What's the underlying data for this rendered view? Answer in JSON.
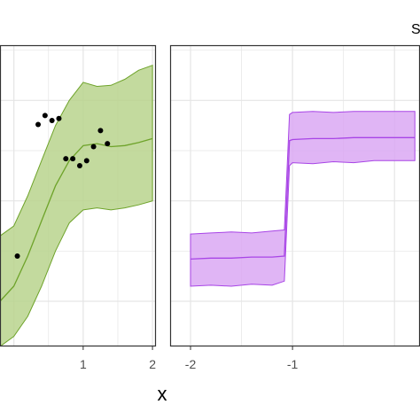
{
  "figure": {
    "xlabel": "x",
    "corner_text": "S"
  },
  "colors": {
    "left_band": "#b9d38d",
    "left_line": "#6ea32a",
    "right_band": "#dba8f3",
    "right_line": "#a845e6",
    "points": "#000000",
    "grid": "#e5e5e5",
    "frame": "#333333"
  },
  "chart_data": [
    {
      "type": "line",
      "panel": "left",
      "xlim": [
        -0.2,
        2.05
      ],
      "ylim": [
        -1.45,
        1.55
      ],
      "x_ticks": [
        1,
        2
      ],
      "x_tick_labels": [
        "1",
        "2"
      ],
      "grid": true,
      "band_x": [
        -0.2,
        0.0,
        0.2,
        0.4,
        0.6,
        0.8,
        1.0,
        1.2,
        1.4,
        1.6,
        1.8,
        2.0
      ],
      "series": [
        {
          "role": "mean",
          "x": [
            -0.2,
            0.0,
            0.2,
            0.4,
            0.6,
            0.8,
            1.0,
            1.2,
            1.4,
            1.6,
            1.8,
            2.0
          ],
          "y": [
            -1.0,
            -0.85,
            -0.55,
            -0.2,
            0.15,
            0.4,
            0.55,
            0.57,
            0.54,
            0.55,
            0.58,
            0.62
          ]
        }
      ],
      "band_lower": [
        -1.45,
        -1.35,
        -1.15,
        -0.85,
        -0.5,
        -0.22,
        -0.09,
        -0.07,
        -0.09,
        -0.07,
        -0.04,
        0.0
      ],
      "band_upper": [
        -0.35,
        -0.25,
        0.05,
        0.4,
        0.75,
        1.0,
        1.18,
        1.14,
        1.15,
        1.21,
        1.3,
        1.35
      ],
      "points": {
        "x": [
          0.05,
          0.35,
          0.45,
          0.55,
          0.65,
          0.75,
          0.85,
          0.95,
          1.05,
          1.15,
          1.25,
          1.35
        ],
        "y": [
          -0.55,
          0.76,
          0.85,
          0.8,
          0.82,
          0.42,
          0.42,
          0.35,
          0.4,
          0.54,
          0.7,
          0.57
        ]
      }
    },
    {
      "type": "line",
      "panel": "right",
      "xlim": [
        -2.2,
        0.25
      ],
      "ylim": [
        -1.45,
        1.55
      ],
      "x_ticks": [
        -2,
        -1
      ],
      "x_tick_labels": [
        "-2",
        "-1"
      ],
      "grid": true,
      "band_x": [
        -2.0,
        -1.8,
        -1.6,
        -1.4,
        -1.2,
        -1.08,
        -1.03,
        -1.0,
        -0.8,
        -0.6,
        -0.4,
        -0.2,
        0.2
      ],
      "series": [
        {
          "role": "mean",
          "x": [
            -2.0,
            -1.8,
            -1.6,
            -1.4,
            -1.2,
            -1.08,
            -1.03,
            -1.0,
            -0.8,
            -0.6,
            -0.4,
            -0.2,
            0.2
          ],
          "y": [
            -0.58,
            -0.57,
            -0.57,
            -0.56,
            -0.56,
            -0.55,
            0.6,
            0.61,
            0.62,
            0.62,
            0.63,
            0.63,
            0.63
          ]
        }
      ],
      "band_lower": [
        -0.85,
        -0.84,
        -0.85,
        -0.83,
        -0.84,
        -0.8,
        0.35,
        0.38,
        0.37,
        0.39,
        0.38,
        0.4,
        0.4
      ],
      "band_upper": [
        -0.33,
        -0.32,
        -0.31,
        -0.32,
        -0.3,
        -0.29,
        0.86,
        0.88,
        0.89,
        0.88,
        0.89,
        0.89,
        0.89
      ]
    }
  ]
}
